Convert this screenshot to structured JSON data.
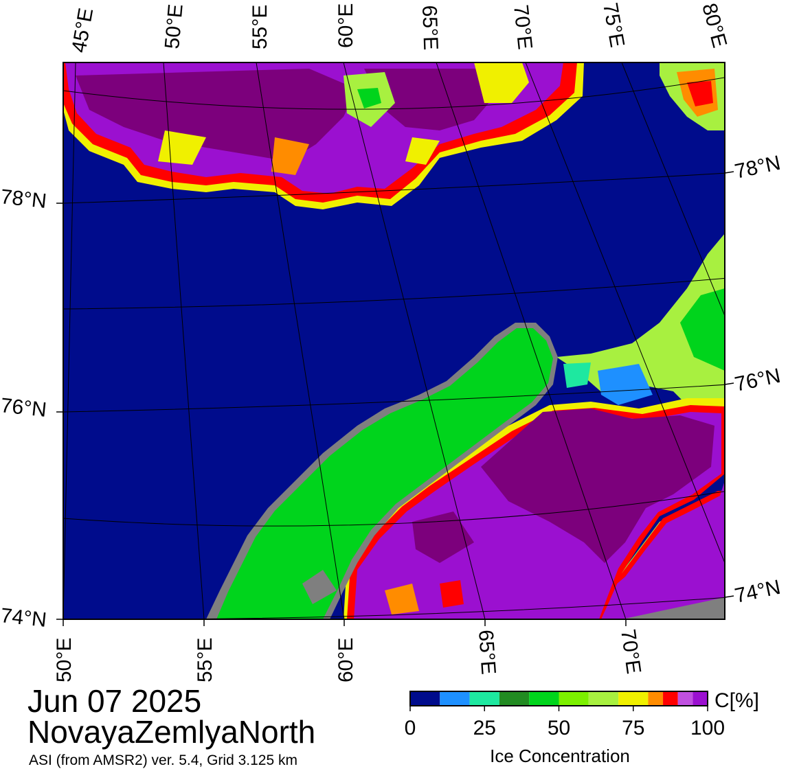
{
  "map": {
    "top_lon_labels": [
      "45°E",
      "50°E",
      "55°E",
      "60°E",
      "65°E",
      "70°E",
      "75°E",
      "80°E"
    ],
    "bottom_lon_labels": [
      "50°E",
      "55°E",
      "60°E",
      "65°E",
      "70°E"
    ],
    "left_lat_labels": [
      "78°N",
      "76°N",
      "74°N"
    ],
    "right_lat_labels": [
      "78°N",
      "76°N",
      "74°N"
    ],
    "colors": {
      "open_water": "#000c8c",
      "land": "#00d41c",
      "land_mask": "#7f7f7f",
      "ice_high": "#7c007c",
      "ice_mid": "#9b10d0"
    }
  },
  "caption": {
    "date": "Jun 07 2025",
    "region": "NovayaZemlyaNorth",
    "source": "ASI (from AMSR2) ver. 5.4,  Grid 3.125 km"
  },
  "colorbar": {
    "title": "Ice Concentration",
    "unit": "C[%]",
    "ticks": [
      "0",
      "25",
      "50",
      "75",
      "100"
    ],
    "tick_values": [
      0,
      25,
      50,
      75,
      100
    ],
    "min": 0,
    "max": 100,
    "colors": [
      "#000c8c",
      "#1e90ff",
      "#1ee8a0",
      "#228b22",
      "#00d41c",
      "#7cf000",
      "#a8f040",
      "#f0f000",
      "#ff8c00",
      "#ff0000",
      "#c050e0",
      "#9b10d0"
    ]
  }
}
